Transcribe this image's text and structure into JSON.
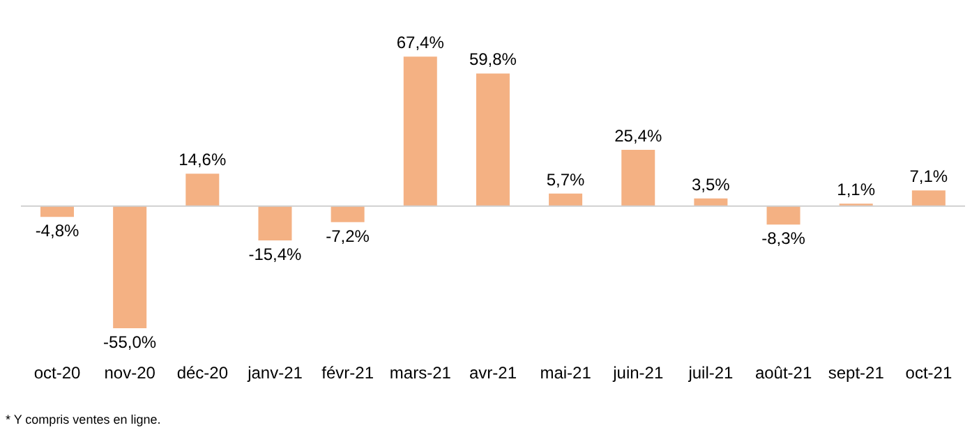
{
  "chart_data": {
    "type": "bar",
    "categories": [
      "oct-20",
      "nov-20",
      "déc-20",
      "janv-21",
      "févr-21",
      "mars-21",
      "avr-21",
      "mai-21",
      "juin-21",
      "juil-21",
      "août-21",
      "sept-21",
      "oct-21"
    ],
    "values": [
      -4.8,
      -55.0,
      14.6,
      -15.4,
      -7.2,
      67.4,
      59.8,
      5.7,
      25.4,
      3.5,
      -8.3,
      1.1,
      7.1
    ],
    "value_labels": [
      "-4,8%",
      "-55,0%",
      "14,6%",
      "-15,4%",
      "-7,2%",
      "67,4%",
      "59,8%",
      "5,7%",
      "25,4%",
      "3,5%",
      "-8,3%",
      "1,1%",
      "7,1%"
    ],
    "color": "#f4b183",
    "annotations": [
      "* Y compris ventes en ligne."
    ]
  }
}
